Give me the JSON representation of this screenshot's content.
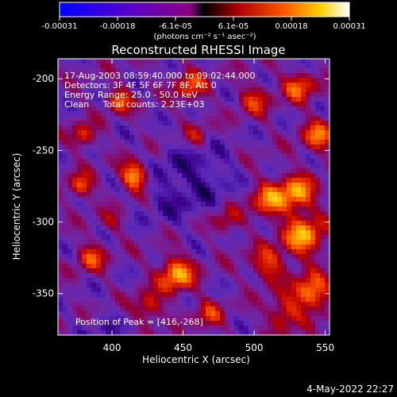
{
  "chart_data": {
    "type": "heatmap",
    "title": "Reconstructed RHESSI Image",
    "xlabel": "Heliocentric X (arcsec)",
    "ylabel": "Heliocentric Y (arcsec)",
    "xlim": [
      362,
      553
    ],
    "ylim": [
      -379,
      -186
    ],
    "xticks": [
      400,
      450,
      500,
      550
    ],
    "yticks": [
      -200,
      -250,
      -300,
      -350
    ],
    "grid": false,
    "colorbar": {
      "orientation": "horizontal",
      "placement": "top",
      "ticks": [
        "-0.00031",
        "-0.00018",
        "-6.1e-05",
        "6.1e-05",
        "0.00018",
        "0.00031"
      ],
      "range": [
        -0.00031,
        0.00031
      ],
      "unit_label": "(photons cm⁻² s⁻¹ asec⁻²)"
    },
    "annotations": [
      "17-Aug-2003 08:59:40.000 to 09:02:44.000",
      "Detectors: 3F 4F 5F 6F 7F 8F, Att 0",
      "Energy Range: 25.0 - 50.0 keV",
      "Clean     Total counts: 2.23E+03"
    ],
    "peak_label": "Position of Peak = [416,-268]",
    "peak": {
      "x": 416,
      "y": -268
    },
    "blobs": [
      {
        "x": 416,
        "y": -268,
        "a": 1.0,
        "s": 7
      },
      {
        "x": 405,
        "y": -215,
        "a": 0.7,
        "s": 6
      },
      {
        "x": 380,
        "y": -240,
        "a": 0.6,
        "s": 6
      },
      {
        "x": 378,
        "y": -275,
        "a": 0.7,
        "s": 6
      },
      {
        "x": 385,
        "y": -325,
        "a": 0.6,
        "s": 7
      },
      {
        "x": 445,
        "y": -337,
        "a": 0.9,
        "s": 9
      },
      {
        "x": 425,
        "y": -360,
        "a": 0.6,
        "s": 7
      },
      {
        "x": 468,
        "y": -365,
        "a": 0.5,
        "s": 7
      },
      {
        "x": 455,
        "y": -205,
        "a": 0.6,
        "s": 8
      },
      {
        "x": 500,
        "y": -215,
        "a": 0.5,
        "s": 8
      },
      {
        "x": 532,
        "y": -205,
        "a": 0.7,
        "s": 8
      },
      {
        "x": 545,
        "y": -240,
        "a": 0.7,
        "s": 8
      },
      {
        "x": 510,
        "y": -285,
        "a": 0.7,
        "s": 9
      },
      {
        "x": 530,
        "y": -280,
        "a": 0.85,
        "s": 9
      },
      {
        "x": 535,
        "y": -310,
        "a": 0.9,
        "s": 10
      },
      {
        "x": 510,
        "y": -330,
        "a": 0.6,
        "s": 9
      },
      {
        "x": 540,
        "y": -350,
        "a": 0.9,
        "s": 9
      },
      {
        "x": 520,
        "y": -365,
        "a": 0.6,
        "s": 8
      },
      {
        "x": 480,
        "y": -300,
        "a": 0.4,
        "s": 7
      },
      {
        "x": 460,
        "y": -240,
        "a": 0.35,
        "s": 6
      },
      {
        "x": 400,
        "y": -300,
        "a": 0.3,
        "s": 6
      }
    ],
    "voids": [
      {
        "x": 445,
        "y": -275,
        "a": 0.9,
        "s": 18
      },
      {
        "x": 470,
        "y": -265,
        "a": 0.6,
        "s": 12
      },
      {
        "x": 395,
        "y": -380,
        "a": 0.5,
        "s": 12
      },
      {
        "x": 540,
        "y": -190,
        "a": 0.4,
        "s": 8
      }
    ]
  },
  "timestamp": "4-May-2022 22:27"
}
